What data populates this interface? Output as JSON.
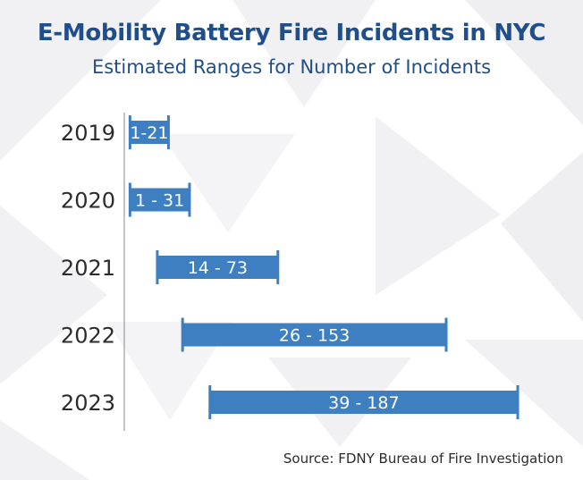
{
  "header": {
    "title": "E-Mobility Battery Fire Incidents in NYC",
    "subtitle": "Estimated Ranges for Number of Incidents"
  },
  "footer": {
    "source": "Source: FDNY Bureau of Fire Investigation"
  },
  "colors": {
    "title": "#1f4e8a",
    "bar": "#3d7fc1",
    "axis": "#888888",
    "label": "#2b2b2b",
    "bar_text": "#ffffff"
  },
  "chart_data": {
    "type": "bar",
    "orientation": "horizontal",
    "title": "E-Mobility Battery Fire Incidents in NYC",
    "subtitle": "Estimated Ranges for Number of Incidents",
    "categories": [
      "2019",
      "2020",
      "2021",
      "2022",
      "2023"
    ],
    "ranges": [
      {
        "low": 1,
        "high": 21,
        "label": "1-21"
      },
      {
        "low": 1,
        "high": 31,
        "label": "1 - 31"
      },
      {
        "low": 14,
        "high": 73,
        "label": "14 - 73"
      },
      {
        "low": 26,
        "high": 153,
        "label": "26 - 153"
      },
      {
        "low": 39,
        "high": 187,
        "label": "39 - 187"
      }
    ],
    "xlim": [
      0,
      187
    ],
    "grid": false,
    "xlabel": "",
    "ylabel": ""
  }
}
